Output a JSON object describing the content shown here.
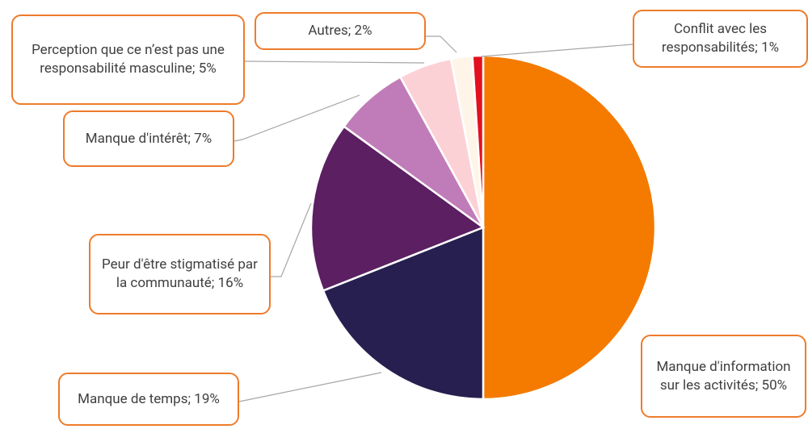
{
  "chart_data": {
    "type": "pie",
    "value_labels": [
      "Manque d'information sur les activités; 50%",
      "Manque de temps; 19%",
      "Peur d'être stigmatisé par la communauté; 16%",
      "Manque d'intérêt; 7%",
      "Perception que ce n’est pas une responsabilité masculine; 5%",
      "Autres; 2%",
      "Conflit avec les responsabilités; 1%"
    ],
    "values": [
      50,
      19,
      16,
      7,
      5,
      2,
      1
    ],
    "colors": [
      "#f47a00",
      "#261f4f",
      "#5b1f62",
      "#c07cb8",
      "#fcd1d6",
      "#fef5e8",
      "#e3101f"
    ]
  }
}
